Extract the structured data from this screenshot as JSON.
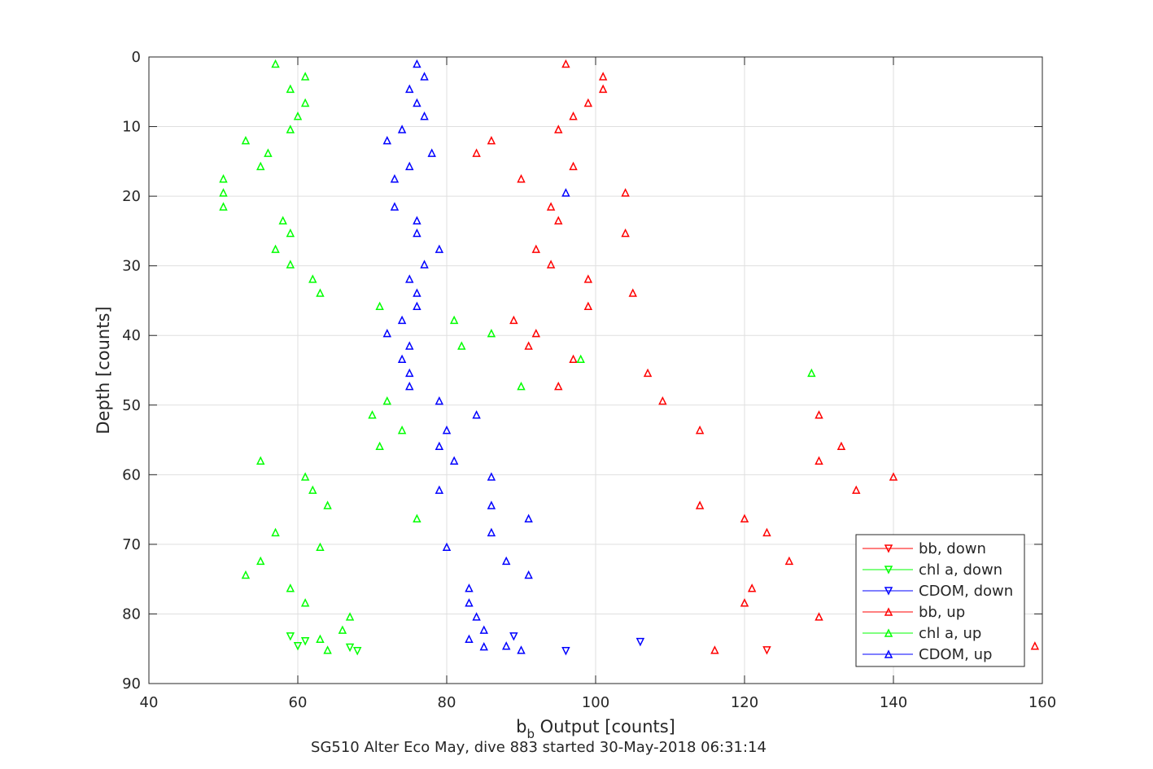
{
  "chart_data": {
    "type": "scatter",
    "title": "SG510 Alter Eco May, dive 883 started 30-May-2018 06:31:14",
    "xlabel": "b_b Output [counts]",
    "xlabel_main": "b",
    "xlabel_sub": "b",
    "xlabel_rest": " Output [counts]",
    "ylabel": "Depth [counts]",
    "xlim": [
      40,
      160
    ],
    "ylim": [
      0,
      90
    ],
    "y_reversed": true,
    "grid": true,
    "legend_position": "bottom-right",
    "x_ticks": [
      "40",
      "60",
      "80",
      "100",
      "120",
      "140",
      "160"
    ],
    "y_ticks": [
      "0",
      "10",
      "20",
      "30",
      "40",
      "50",
      "60",
      "70",
      "80",
      "90"
    ],
    "series": [
      {
        "name": "bb, down",
        "color": "#ff0000",
        "marker": "triangle-down",
        "points": [
          [
            123,
            85.2
          ]
        ]
      },
      {
        "name": "chl a, down",
        "color": "#00ff00",
        "marker": "triangle-down",
        "points": [
          [
            59,
            83.2
          ],
          [
            61,
            83.9
          ],
          [
            60,
            84.6
          ],
          [
            67,
            84.8
          ],
          [
            68,
            85.3
          ]
        ]
      },
      {
        "name": "CDOM, down",
        "color": "#0000ff",
        "marker": "triangle-down",
        "points": [
          [
            89,
            83.2
          ],
          [
            106,
            84.0
          ],
          [
            96,
            85.3
          ]
        ]
      },
      {
        "name": "bb, up",
        "color": "#ff0000",
        "marker": "triangle-up",
        "points": [
          [
            96,
            1
          ],
          [
            101,
            2.8
          ],
          [
            101,
            4.6
          ],
          [
            99,
            6.6
          ],
          [
            97,
            8.5
          ],
          [
            95,
            10.4
          ],
          [
            86,
            12.0
          ],
          [
            84,
            13.8
          ],
          [
            97,
            15.7
          ],
          [
            90,
            17.5
          ],
          [
            104,
            19.5
          ],
          [
            94,
            21.5
          ],
          [
            95,
            23.5
          ],
          [
            104,
            25.3
          ],
          [
            92,
            27.6
          ],
          [
            94,
            29.8
          ],
          [
            99,
            31.9
          ],
          [
            105,
            33.9
          ],
          [
            99,
            35.8
          ],
          [
            89,
            37.8
          ],
          [
            92,
            39.7
          ],
          [
            91,
            41.5
          ],
          [
            97,
            43.4
          ],
          [
            107,
            45.4
          ],
          [
            95,
            47.3
          ],
          [
            109,
            49.4
          ],
          [
            130,
            51.4
          ],
          [
            114,
            53.6
          ],
          [
            133,
            55.9
          ],
          [
            130,
            58.0
          ],
          [
            140,
            60.3
          ],
          [
            135,
            62.2
          ],
          [
            114,
            64.4
          ],
          [
            120,
            66.3
          ],
          [
            123,
            68.3
          ],
          [
            126,
            72.4
          ],
          [
            121,
            76.3
          ],
          [
            120,
            78.4
          ],
          [
            130,
            80.4
          ],
          [
            116,
            85.2
          ],
          [
            159,
            84.6
          ]
        ]
      },
      {
        "name": "chl a, up",
        "color": "#00ff00",
        "marker": "triangle-up",
        "points": [
          [
            57,
            1
          ],
          [
            61,
            2.8
          ],
          [
            59,
            4.6
          ],
          [
            61,
            6.6
          ],
          [
            60,
            8.5
          ],
          [
            59,
            10.4
          ],
          [
            53,
            12.0
          ],
          [
            56,
            13.8
          ],
          [
            55,
            15.7
          ],
          [
            50,
            17.5
          ],
          [
            50,
            19.5
          ],
          [
            50,
            21.5
          ],
          [
            58,
            23.5
          ],
          [
            59,
            25.3
          ],
          [
            57,
            27.6
          ],
          [
            59,
            29.8
          ],
          [
            62,
            31.9
          ],
          [
            63,
            33.9
          ],
          [
            71,
            35.8
          ],
          [
            81,
            37.8
          ],
          [
            86,
            39.7
          ],
          [
            82,
            41.5
          ],
          [
            98,
            43.4
          ],
          [
            129,
            45.4
          ],
          [
            90,
            47.3
          ],
          [
            72,
            49.4
          ],
          [
            70,
            51.4
          ],
          [
            74,
            53.6
          ],
          [
            71,
            55.9
          ],
          [
            55,
            58.0
          ],
          [
            61,
            60.3
          ],
          [
            62,
            62.2
          ],
          [
            64,
            64.4
          ],
          [
            76,
            66.3
          ],
          [
            57,
            68.3
          ],
          [
            63,
            70.4
          ],
          [
            55,
            72.4
          ],
          [
            53,
            74.4
          ],
          [
            59,
            76.3
          ],
          [
            61,
            78.4
          ],
          [
            67,
            80.4
          ],
          [
            66,
            82.3
          ],
          [
            63,
            83.6
          ],
          [
            64,
            85.2
          ]
        ]
      },
      {
        "name": "CDOM, up",
        "color": "#0000ff",
        "marker": "triangle-up",
        "points": [
          [
            76,
            1
          ],
          [
            77,
            2.8
          ],
          [
            75,
            4.6
          ],
          [
            76,
            6.6
          ],
          [
            77,
            8.5
          ],
          [
            74,
            10.4
          ],
          [
            72,
            12.0
          ],
          [
            78,
            13.8
          ],
          [
            75,
            15.7
          ],
          [
            73,
            17.5
          ],
          [
            96,
            19.5
          ],
          [
            73,
            21.5
          ],
          [
            76,
            23.5
          ],
          [
            76,
            25.3
          ],
          [
            79,
            27.6
          ],
          [
            77,
            29.8
          ],
          [
            75,
            31.9
          ],
          [
            76,
            33.9
          ],
          [
            76,
            35.8
          ],
          [
            74,
            37.8
          ],
          [
            72,
            39.7
          ],
          [
            75,
            41.5
          ],
          [
            74,
            43.4
          ],
          [
            75,
            45.4
          ],
          [
            75,
            47.3
          ],
          [
            79,
            49.4
          ],
          [
            84,
            51.4
          ],
          [
            80,
            53.6
          ],
          [
            79,
            55.9
          ],
          [
            81,
            58.0
          ],
          [
            86,
            60.3
          ],
          [
            79,
            62.2
          ],
          [
            86,
            64.4
          ],
          [
            91,
            66.3
          ],
          [
            86,
            68.3
          ],
          [
            80,
            70.4
          ],
          [
            88,
            72.4
          ],
          [
            91,
            74.4
          ],
          [
            83,
            76.3
          ],
          [
            83,
            78.4
          ],
          [
            84,
            80.4
          ],
          [
            85,
            82.3
          ],
          [
            83,
            83.6
          ],
          [
            85,
            84.7
          ],
          [
            88,
            84.6
          ],
          [
            90,
            85.2
          ]
        ]
      }
    ]
  }
}
